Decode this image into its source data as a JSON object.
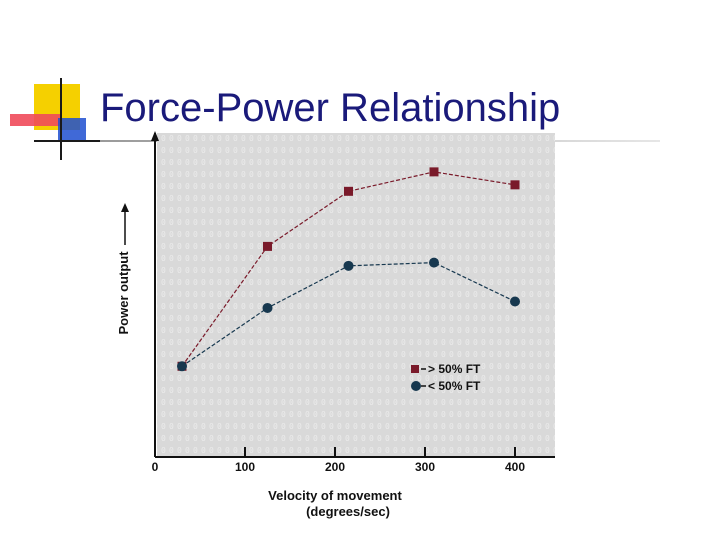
{
  "slide": {
    "title": "Force-Power Relationship"
  },
  "colors": {
    "title": "#1a1a7a",
    "series_fast": "#7a1a2a",
    "series_slow": "#17384f",
    "plot_background": "#d9d9d9",
    "accent_yellow": "#f5d000",
    "accent_red": "#f04a5a",
    "accent_blue": "#1f4fd0"
  },
  "chart_data": {
    "type": "line",
    "title": "",
    "xlabel": "Velocity of movement",
    "xlabel_units": "(degrees/sec)",
    "ylabel": "Power output",
    "xlim": [
      0,
      420
    ],
    "ylim": [
      0,
      100
    ],
    "x_ticks": [
      0,
      100,
      200,
      300,
      400
    ],
    "y_ticks_shown": false,
    "legend_position": "lower-right",
    "series": [
      {
        "name": "> 50% FT",
        "marker": "square",
        "x": [
          30,
          125,
          215,
          310,
          400
        ],
        "y": [
          28,
          65,
          82,
          88,
          84
        ]
      },
      {
        "name": "< 50% FT",
        "marker": "circle",
        "x": [
          30,
          125,
          215,
          310,
          400
        ],
        "y": [
          28,
          46,
          59,
          60,
          48
        ]
      }
    ]
  }
}
